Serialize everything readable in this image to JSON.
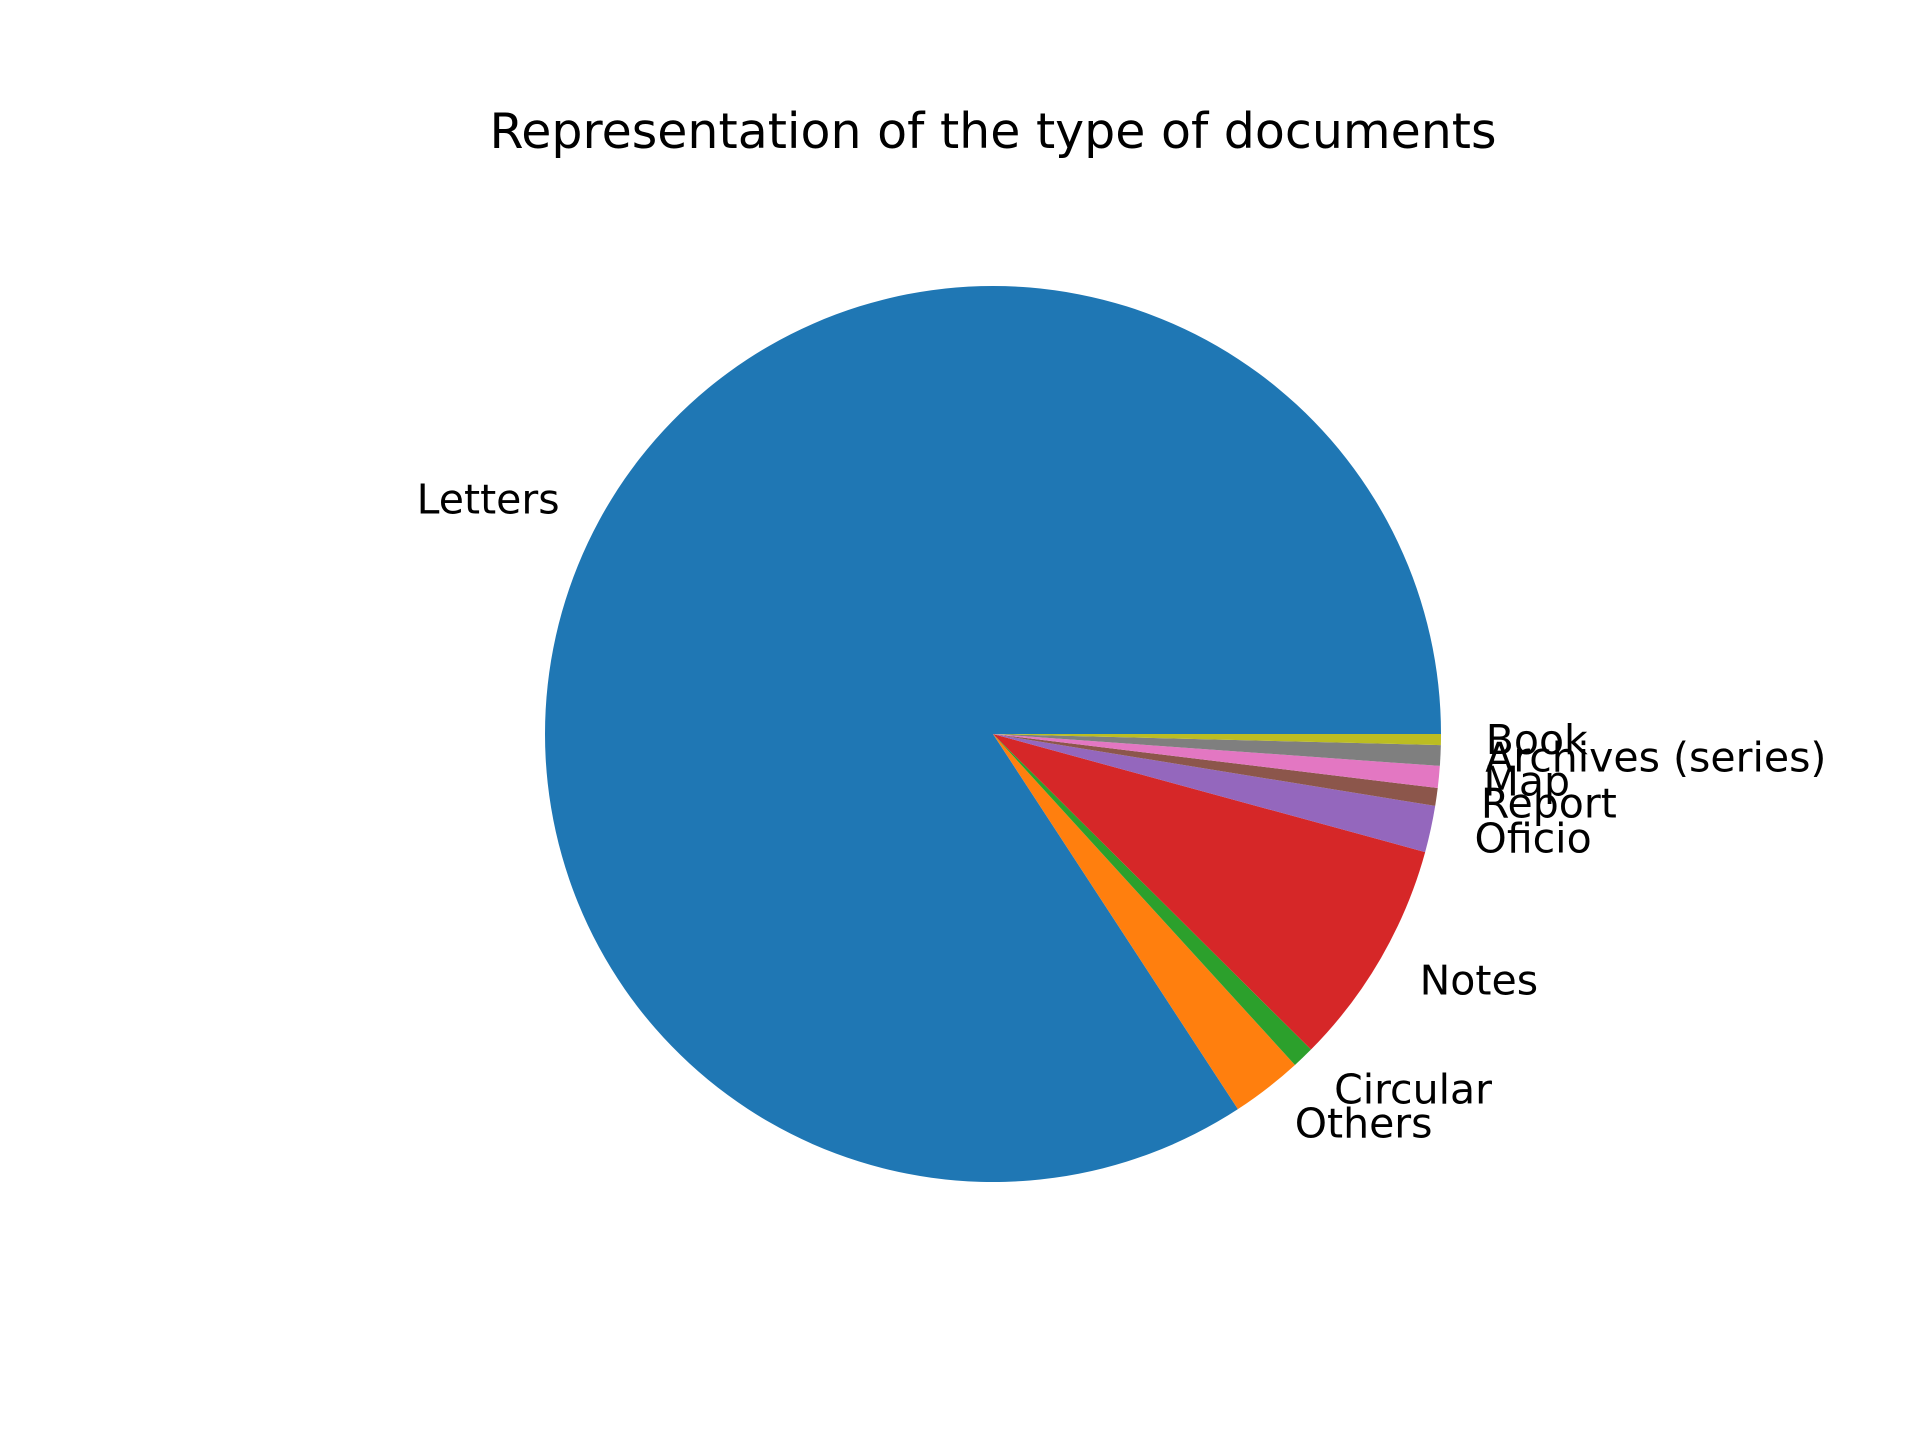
{
  "chart_data": {
    "type": "pie",
    "title": "Representation of the type of documents",
    "start_angle_deg": 0,
    "direction": "counterclockwise",
    "legend": "none",
    "slices": [
      {
        "label": "Letters",
        "value": 85.3,
        "color": "#1f77b4"
      },
      {
        "label": "Others",
        "value": 2.6,
        "color": "#ff7f0e"
      },
      {
        "label": "Circular",
        "value": 0.8,
        "color": "#2ca02c"
      },
      {
        "label": "Notes",
        "value": 8.3,
        "color": "#d62728"
      },
      {
        "label": "Oficio",
        "value": 1.7,
        "color": "#9467bd"
      },
      {
        "label": "Report",
        "value": 0.65,
        "color": "#8c564b"
      },
      {
        "label": "Map",
        "value": 0.8,
        "color": "#e377c2"
      },
      {
        "label": "Archives (series)",
        "value": 0.75,
        "color": "#7f7f7f"
      },
      {
        "label": "Book",
        "value": 0.4,
        "color": "#bcbd22"
      }
    ]
  }
}
